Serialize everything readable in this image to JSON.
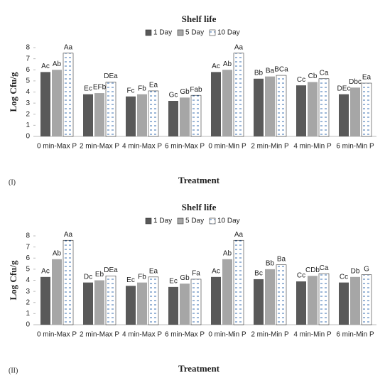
{
  "chart_data": [
    {
      "type": "bar",
      "title": "Shelf life",
      "panel_label": "(I)",
      "x_label": "Treatment",
      "y_label": "Log Cfu/g",
      "categories": [
        "0 min-Max P",
        "2 min-Max P",
        "4 min-Max P",
        "6 min-Max P",
        "0 min-Min P",
        "2 min-Min P",
        "4 min-Min P",
        "6 min-Min P"
      ],
      "series": [
        {
          "name": "1 Day",
          "color": "#595959",
          "values": [
            5.8,
            3.8,
            3.6,
            3.2,
            5.8,
            5.2,
            4.6,
            3.8
          ],
          "letters": [
            "Ac",
            "Ec",
            "Fc",
            "Gc",
            "Ac",
            "Bb",
            "Cc",
            "DEc"
          ]
        },
        {
          "name": "5 Day",
          "color": "#a6a6a6",
          "values": [
            6.0,
            3.9,
            3.8,
            3.5,
            6.0,
            5.4,
            4.9,
            4.4
          ],
          "letters": [
            "Ab",
            "EFb",
            "Fb",
            "Gb",
            "Ab",
            "Ba",
            "Cb",
            "Dbc"
          ]
        },
        {
          "name": "10 Day",
          "color": "#ffffff",
          "pattern": "dashes",
          "values": [
            7.5,
            4.9,
            4.1,
            3.7,
            7.5,
            5.5,
            5.2,
            4.8
          ],
          "letters": [
            "Aa",
            "DEa",
            "Ea",
            "Fab",
            "Aa",
            "BCa",
            "Ca",
            "Ea"
          ]
        }
      ],
      "ylim": [
        0,
        8
      ],
      "yticks": [
        0,
        1,
        2,
        3,
        4,
        5,
        6,
        7,
        8
      ],
      "grid": false,
      "legend": "top"
    },
    {
      "type": "bar",
      "title": "Shelf life",
      "panel_label": "(II)",
      "x_label": "Treatment",
      "y_label": "Log Cfu/g",
      "categories": [
        "0 min-Max P",
        "2 min-Max P",
        "4 min-Max P",
        "6 min-Max P",
        "0 min-Min P",
        "2 min-Min P",
        "4 min-Min P",
        "6 min-Min P"
      ],
      "series": [
        {
          "name": "1 Day",
          "color": "#595959",
          "values": [
            4.3,
            3.8,
            3.5,
            3.4,
            4.3,
            4.1,
            3.9,
            3.8
          ],
          "letters": [
            "Ac",
            "Dc",
            "Ec",
            "Ec",
            "Ac",
            "Bc",
            "Cc",
            "Cc"
          ]
        },
        {
          "name": "5 Day",
          "color": "#a6a6a6",
          "values": [
            5.9,
            4.0,
            3.8,
            3.7,
            5.9,
            5.0,
            4.4,
            4.3
          ],
          "letters": [
            "Ab",
            "Eb",
            "Fb",
            "Gb",
            "Ab",
            "Bb",
            "CDb",
            "Db"
          ]
        },
        {
          "name": "10 Day",
          "color": "#ffffff",
          "pattern": "dashes",
          "values": [
            7.6,
            4.4,
            4.3,
            4.1,
            7.6,
            5.4,
            4.6,
            4.5
          ],
          "letters": [
            "Aa",
            "DEa",
            "Ea",
            "Fa",
            "Aa",
            "Ba",
            "Ca",
            "G"
          ]
        }
      ],
      "ylim": [
        0,
        8
      ],
      "yticks": [
        0,
        1,
        2,
        3,
        4,
        5,
        6,
        7,
        8
      ],
      "grid": false,
      "legend": "top"
    }
  ]
}
